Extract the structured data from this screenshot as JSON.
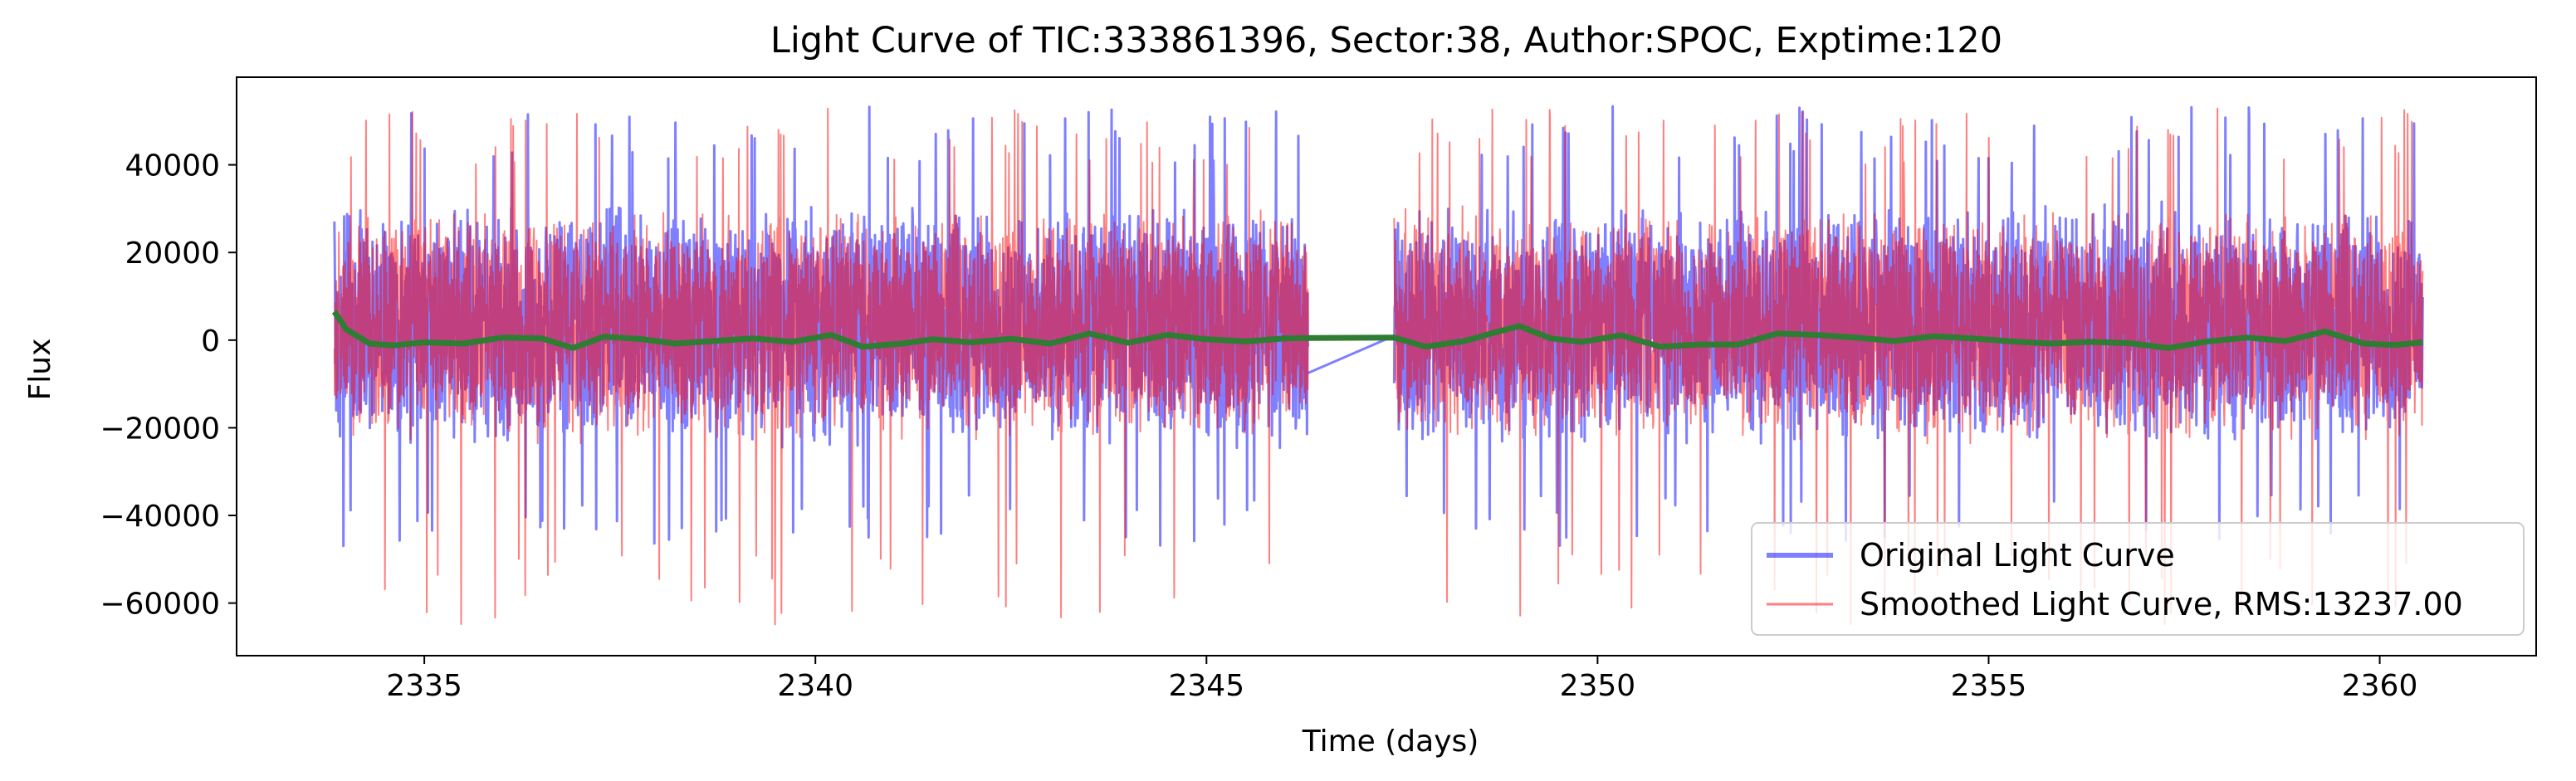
{
  "chart_data": {
    "type": "line",
    "title": "Light Curve of TIC:333861396, Sector:38, Author:SPOC, Exptime:120",
    "xlabel": "Time (days)",
    "ylabel": "Flux",
    "xlim": [
      2332.6,
      2362.0
    ],
    "ylim": [
      -72000,
      60000
    ],
    "xticks": [
      2335,
      2340,
      2345,
      2350,
      2355,
      2360
    ],
    "yticks": [
      -60000,
      -40000,
      -20000,
      0,
      20000,
      40000
    ],
    "x_tick_labels": [
      "2335",
      "2340",
      "2345",
      "2350",
      "2355",
      "2360"
    ],
    "y_tick_labels": [
      "−60000",
      "−40000",
      "−20000",
      "0",
      "20000",
      "40000"
    ],
    "grid": false,
    "legend_position": "lower-right",
    "data_gap": [
      2346.3,
      2347.4
    ],
    "series": [
      {
        "name": "Original Light Curve",
        "color": "#0000ff",
        "opacity": 0.5,
        "segments": [
          {
            "x_start": 2333.85,
            "x_end": 2346.3
          },
          {
            "x_start": 2347.4,
            "x_end": 2360.55
          }
        ],
        "typical_range": [
          -25000,
          32000
        ],
        "spike_max": 53500,
        "spike_min": -47000,
        "gap_bridge": {
          "x": [
            2346.3,
            2347.4
          ],
          "y": [
            -7500,
            1000
          ]
        }
      },
      {
        "name": "Smoothed Light Curve, RMS:13237.00",
        "color": "#ff0000",
        "opacity": 0.5,
        "segments": [
          {
            "x_start": 2333.85,
            "x_end": 2346.3
          },
          {
            "x_start": 2347.4,
            "x_end": 2360.55
          }
        ],
        "typical_range": [
          -24000,
          31000
        ],
        "spike_max": 53000,
        "spike_min": -65000
      },
      {
        "name": "",
        "color": "#2e7d32",
        "x": [
          2333.85,
          2334.0,
          2334.3,
          2334.6,
          2335.0,
          2335.5,
          2336.0,
          2336.5,
          2336.9,
          2337.3,
          2337.8,
          2338.2,
          2338.7,
          2339.2,
          2339.7,
          2340.2,
          2340.6,
          2341.1,
          2341.5,
          2342.0,
          2342.5,
          2343.0,
          2343.5,
          2344.0,
          2344.5,
          2345.0,
          2345.5,
          2346.0,
          2346.3,
          2347.4,
          2347.8,
          2348.3,
          2348.7,
          2349.0,
          2349.4,
          2349.8,
          2350.3,
          2350.8,
          2351.3,
          2351.8,
          2352.3,
          2352.8,
          2353.3,
          2353.8,
          2354.3,
          2354.8,
          2355.3,
          2355.8,
          2356.3,
          2356.8,
          2357.3,
          2357.8,
          2358.3,
          2358.8,
          2359.3,
          2359.8,
          2360.2,
          2360.55
        ],
        "y": [
          6500,
          2500,
          -800,
          -1200,
          -500,
          -800,
          600,
          400,
          -1800,
          800,
          200,
          -800,
          -200,
          400,
          -400,
          1200,
          -1500,
          -800,
          200,
          -500,
          300,
          -800,
          1500,
          -600,
          1200,
          200,
          -300,
          400,
          500,
          600,
          -1500,
          -200,
          1800,
          3200,
          400,
          -400,
          1100,
          -1500,
          -1000,
          -1000,
          1500,
          1200,
          600,
          -200,
          900,
          400,
          -300,
          -800,
          -400,
          -700,
          -1800,
          -300,
          600,
          -200,
          2000,
          -800,
          -1100,
          -500
        ]
      }
    ]
  }
}
